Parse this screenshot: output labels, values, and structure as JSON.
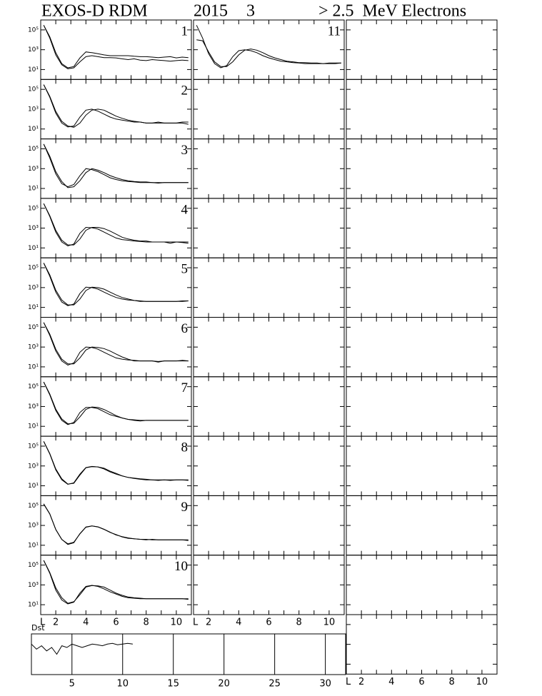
{
  "header": {
    "instrument": "EXOS-D RDM",
    "year": "2015",
    "month": "3",
    "species": "> 2.5  MeV Electrons"
  },
  "chart_data": {
    "type": "line",
    "log_y": true,
    "color": "#000000",
    "xlabel": "L",
    "xlim": [
      1,
      11
    ],
    "xticks": [
      2,
      4,
      6,
      8,
      10
    ],
    "xminorticks": [
      1,
      3,
      5,
      7,
      9,
      11
    ],
    "ylim": [
      1,
      1000000
    ],
    "yticks": [
      {
        "value": 10,
        "label": "10¹"
      },
      {
        "value": 1000,
        "label": "10³"
      },
      {
        "value": 100000,
        "label": "10⁵"
      }
    ],
    "x": [
      1.2,
      1.6,
      2.0,
      2.4,
      2.8,
      3.2,
      3.6,
      4.0,
      4.4,
      4.8,
      5.2,
      5.6,
      6.0,
      6.4,
      6.8,
      7.2,
      7.6,
      8.0,
      8.4,
      8.8,
      9.2,
      9.6,
      10.0,
      10.4,
      10.8
    ],
    "panels": [
      {
        "label": "1",
        "series": [
          {
            "values": [
              300000,
              15000,
              300,
              30,
              12,
              15,
              60,
              200,
              250,
              200,
              160,
              160,
              150,
              120,
              100,
              120,
              90,
              80,
              100,
              90,
              80,
              70,
              80,
              90,
              80
            ]
          },
          {
            "values": [
              300000,
              20000,
              500,
              40,
              15,
              20,
              150,
              600,
              500,
              400,
              300,
              250,
              250,
              250,
              250,
              220,
              200,
              200,
              180,
              160,
              180,
              200,
              150,
              180,
              160
            ]
          }
        ]
      },
      {
        "label": "2",
        "series": [
          {
            "values": [
              300000,
              16000,
              400,
              40,
              16,
              20,
              160,
              800,
              1000,
              630,
              320,
              160,
              100,
              80,
              63,
              50,
              50,
              40,
              40,
              50,
              40,
              40,
              40,
              50,
              50
            ]
          },
          {
            "values": [
              300000,
              20000,
              600,
              60,
              20,
              15,
              40,
              250,
              800,
              1000,
              800,
              400,
              200,
              120,
              80,
              60,
              50,
              40,
              40,
              40,
              40,
              40,
              40,
              40,
              30
            ]
          }
        ]
      },
      {
        "label": "3",
        "series": [
          {
            "values": [
              300000,
              12000,
              300,
              30,
              15,
              25,
              200,
              1000,
              800,
              500,
              250,
              120,
              80,
              60,
              50,
              45,
              40,
              40,
              40,
              35,
              40,
              40,
              40,
              40,
              40
            ]
          },
          {
            "values": [
              300000,
              18000,
              500,
              50,
              12,
              15,
              60,
              400,
              1000,
              700,
              400,
              200,
              120,
              80,
              60,
              50,
              45,
              45,
              40,
              40,
              40,
              40,
              40,
              40,
              40
            ]
          }
        ]
      },
      {
        "label": "4",
        "series": [
          {
            "values": [
              300000,
              15000,
              400,
              40,
              16,
              25,
              300,
              1200,
              1100,
              800,
              400,
              200,
              100,
              70,
              60,
              50,
              45,
              40,
              40,
              40,
              40,
              30,
              40,
              35,
              30
            ]
          },
          {
            "values": [
              300000,
              18000,
              600,
              60,
              20,
              20,
              80,
              600,
              1200,
              1200,
              900,
              500,
              250,
              120,
              80,
              60,
              50,
              50,
              40,
              40,
              40,
              40,
              40,
              40,
              40
            ]
          }
        ]
      },
      {
        "label": "5",
        "series": [
          {
            "values": [
              300000,
              14000,
              350,
              35,
              15,
              22,
              250,
              1100,
              1000,
              700,
              350,
              180,
              100,
              70,
              55,
              50,
              40,
              40,
              40,
              40,
              40,
              40,
              40,
              40,
              45
            ]
          },
          {
            "values": [
              300000,
              19000,
              550,
              55,
              18,
              18,
              70,
              500,
              1100,
              1000,
              700,
              350,
              180,
              100,
              70,
              50,
              45,
              40,
              40,
              40,
              40,
              40,
              40,
              45,
              45
            ]
          }
        ]
      },
      {
        "label": "6",
        "series": [
          {
            "values": [
              300000,
              15000,
              400,
              40,
              15,
              25,
              300,
              1000,
              900,
              600,
              300,
              150,
              80,
              60,
              50,
              45,
              40,
              40,
              40,
              35,
              40,
              40,
              40,
              40,
              40
            ]
          },
          {
            "values": [
              300000,
              20000,
              600,
              60,
              20,
              20,
              80,
              500,
              1000,
              900,
              700,
              400,
              200,
              100,
              60,
              40,
              40,
              40,
              40,
              30,
              40,
              40,
              40,
              45,
              40
            ]
          }
        ]
      },
      {
        "label": "7",
        "series": [
          {
            "values": [
              300000,
              15000,
              400,
              40,
              15,
              25,
              250,
              800,
              800,
              600,
              300,
              150,
              100,
              70,
              50,
              45,
              40,
              40,
              40,
              40,
              40,
              40,
              40,
              40,
              40
            ]
          },
          {
            "values": [
              300000,
              18000,
              550,
              55,
              18,
              20,
              90,
              500,
              900,
              800,
              500,
              250,
              120,
              70,
              50,
              40,
              35,
              40,
              40,
              40,
              40,
              40,
              40,
              40,
              40
            ]
          }
        ]
      },
      {
        "label": "8",
        "series": [
          {
            "values": [
              300000,
              16000,
              400,
              40,
              14,
              20,
              150,
              700,
              900,
              800,
              500,
              250,
              150,
              100,
              70,
              55,
              45,
              40,
              40,
              35,
              40,
              35,
              40,
              40,
              40
            ]
          },
          {
            "values": [
              300000,
              18000,
              500,
              50,
              15,
              18,
              120,
              650,
              850,
              800,
              600,
              300,
              180,
              100,
              70,
              60,
              50,
              45,
              40,
              40,
              40,
              40,
              40,
              40,
              35
            ]
          }
        ]
      },
      {
        "label": "9",
        "series": [
          {
            "values": [
              150000,
              15000,
              400,
              40,
              12,
              18,
              150,
              700,
              900,
              700,
              400,
              200,
              120,
              70,
              50,
              45,
              40,
              35,
              40,
              35,
              35,
              35,
              35,
              35,
              35
            ]
          },
          {
            "values": [
              140000,
              14000,
              380,
              38,
              14,
              20,
              140,
              650,
              880,
              720,
              420,
              210,
              110,
              75,
              55,
              45,
              40,
              40,
              35,
              35,
              35,
              35,
              35,
              35,
              30
            ]
          }
        ]
      },
      {
        "label": "10",
        "series": [
          {
            "values": [
              300000,
              15000,
              300,
              30,
              12,
              18,
              150,
              700,
              900,
              700,
              400,
              200,
              120,
              70,
              50,
              45,
              40,
              40,
              40,
              40,
              40,
              40,
              40,
              40,
              35
            ]
          },
          {
            "values": [
              300000,
              18000,
              500,
              50,
              14,
              20,
              100,
              600,
              850,
              800,
              600,
              300,
              150,
              90,
              60,
              50,
              45,
              40,
              40,
              40,
              40,
              40,
              40,
              40,
              40
            ]
          }
        ]
      },
      {
        "label": "11",
        "series": [
          {
            "values": [
              300000,
              15000,
              400,
              40,
              15,
              25,
              200,
              800,
              1000,
              800,
              500,
              250,
              150,
              100,
              70,
              60,
              50,
              45,
              40,
              40,
              40,
              40,
              40,
              40,
              45
            ]
          },
          {
            "values": [
              10000,
              8000,
              600,
              60,
              20,
              20,
              60,
              300,
              900,
              1200,
              900,
              500,
              250,
              150,
              100,
              70,
              60,
              50,
              50,
              45,
              45,
              40,
              45,
              45,
              45
            ]
          }
        ]
      }
    ],
    "dst": {
      "type": "line",
      "label": "Dst",
      "xlim": [
        1,
        32
      ],
      "xticks": [
        5,
        10,
        15,
        20,
        25,
        30
      ],
      "ylim": [
        -100,
        20
      ],
      "x": [
        1,
        1.5,
        2,
        2.5,
        3,
        3.5,
        4,
        4.5,
        5,
        5.5,
        6,
        6.5,
        7,
        7.5,
        8,
        8.5,
        9,
        9.5,
        10,
        10.5,
        11
      ],
      "values": [
        -10,
        -25,
        -15,
        -30,
        -20,
        -40,
        -15,
        -20,
        -10,
        -15,
        -20,
        -15,
        -10,
        -12,
        -15,
        -10,
        -8,
        -12,
        -10,
        -8,
        -10
      ]
    }
  }
}
